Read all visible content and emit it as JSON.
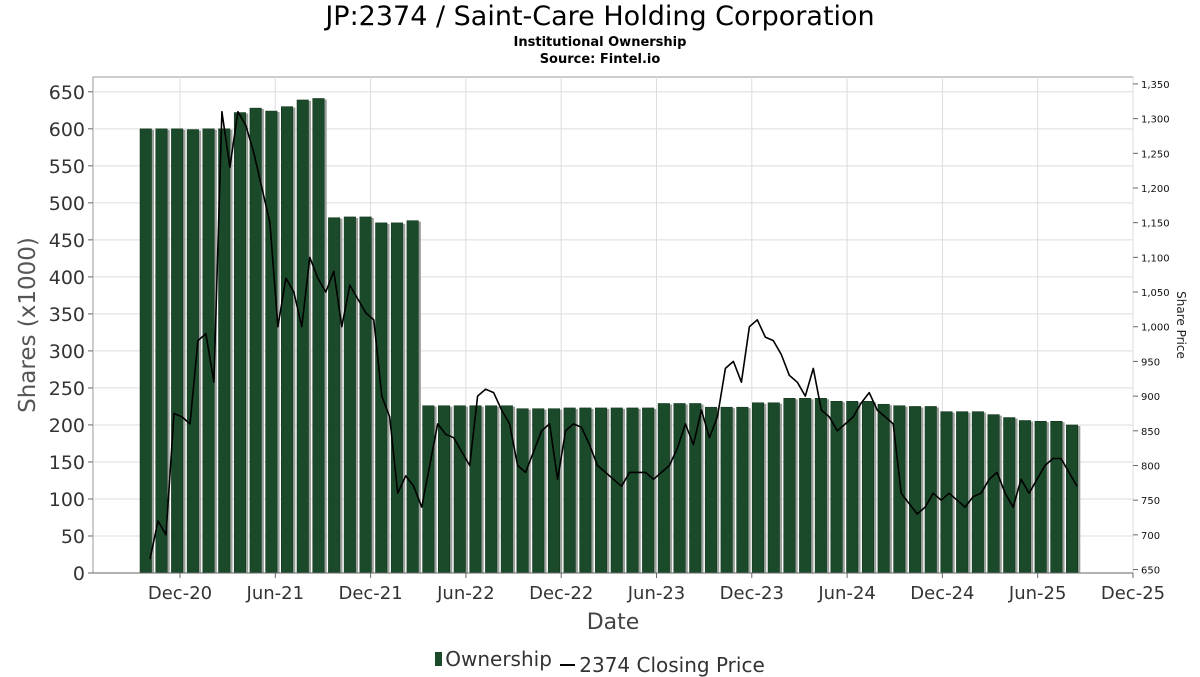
{
  "chart_data": {
    "type": "bar",
    "title": "JP:2374 / Saint-Care Holding Corporation",
    "subtitle": "Institutional Ownership",
    "source": "Source: Fintel.io",
    "xlabel": "Date",
    "ylabel": "Shares (x1000)",
    "y2label": "Share Price",
    "ylim": [
      0,
      670
    ],
    "y2lim": [
      645,
      1360
    ],
    "y_ticks": [
      "0",
      "50",
      "100",
      "150",
      "200",
      "250",
      "300",
      "350",
      "400",
      "450",
      "500",
      "550",
      "600",
      "650"
    ],
    "y2_ticks": [
      "650",
      "700",
      "750",
      "800",
      "850",
      "900",
      "950",
      "1,000",
      "1,050",
      "1,100",
      "1,150",
      "1,200",
      "1,250",
      "1,300",
      "1,350"
    ],
    "x_ticks": [
      "Dec-20",
      "Jun-21",
      "Dec-21",
      "Jun-22",
      "Dec-22",
      "Jun-23",
      "Dec-23",
      "Jun-24",
      "Dec-24",
      "Jun-25",
      "Dec-25"
    ],
    "grid": true,
    "legend_position": "bottom",
    "series": [
      {
        "name": "Ownership",
        "color": "#1a4a2a",
        "values": [
          600,
          600,
          600,
          599,
          600,
          600,
          622,
          628,
          624,
          630,
          639,
          641,
          480,
          481,
          481,
          473,
          473,
          476,
          226,
          226,
          226,
          226,
          226,
          226,
          222,
          222,
          222,
          223,
          223,
          223,
          223,
          223,
          223,
          229,
          229,
          229,
          224,
          224,
          224,
          230,
          230,
          236,
          236,
          236,
          232,
          232,
          232,
          228,
          226,
          225,
          225,
          218,
          218,
          218,
          214,
          210,
          206,
          205,
          205,
          200
        ]
      },
      {
        "name": "2374 Closing Price",
        "color": "#000000",
        "values": [
          665,
          720,
          700,
          875,
          870,
          860,
          980,
          990,
          920,
          1310,
          1230,
          1310,
          1290,
          1250,
          1200,
          1150,
          1000,
          1070,
          1050,
          1000,
          1100,
          1070,
          1050,
          1080,
          1000,
          1060,
          1040,
          1020,
          1010,
          900,
          870,
          760,
          785,
          770,
          740,
          800,
          860,
          845,
          840,
          820,
          800,
          900,
          910,
          905,
          880,
          860,
          800,
          790,
          820,
          850,
          860,
          780,
          850,
          860,
          855,
          830,
          800,
          790,
          780,
          770,
          790,
          790,
          790,
          780,
          790,
          800,
          825,
          860,
          830,
          880,
          840,
          870,
          940,
          950,
          920,
          1000,
          1010,
          985,
          980,
          960,
          930,
          920,
          900,
          940,
          880,
          870,
          850,
          860,
          870,
          890,
          905,
          880,
          870,
          860,
          760,
          745,
          730,
          740,
          760,
          750,
          760,
          750,
          740,
          755,
          760,
          780,
          790,
          760,
          740,
          780,
          760,
          780,
          800,
          810,
          810,
          790,
          770
        ]
      }
    ]
  },
  "legend": {
    "ownership_label": "Ownership",
    "price_label": "2374 Closing Price"
  }
}
